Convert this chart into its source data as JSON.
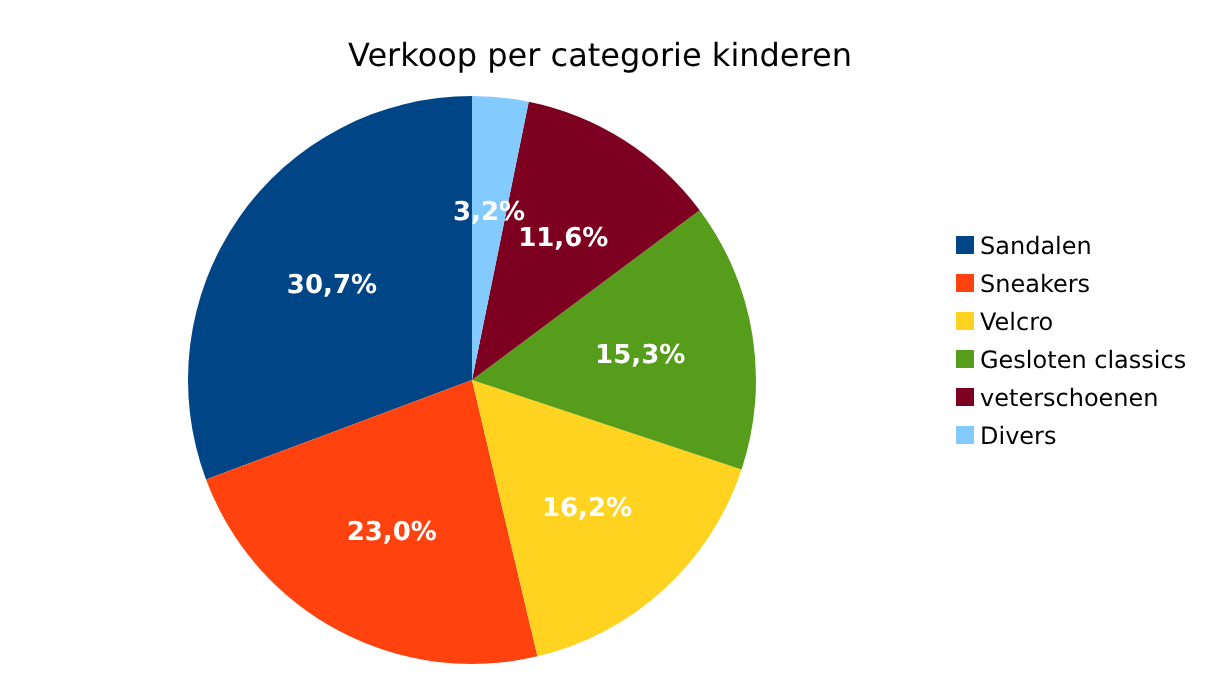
{
  "chart_data": {
    "type": "pie",
    "title": "Verkoop per categorie kinderen",
    "categories": [
      "Sandalen",
      "Sneakers",
      "Velcro",
      "Gesloten classics",
      "veterschoenen",
      "Divers"
    ],
    "values": [
      30.7,
      23.0,
      16.2,
      15.3,
      11.6,
      3.2
    ],
    "value_labels": [
      "30,7%",
      "23,0%",
      "16,2%",
      "15,3%",
      "11,6%",
      "3,2%"
    ],
    "colors": [
      "#004586",
      "#ff420e",
      "#ffd320",
      "#579d1c",
      "#7e0021",
      "#83caff"
    ],
    "legend": "right"
  }
}
